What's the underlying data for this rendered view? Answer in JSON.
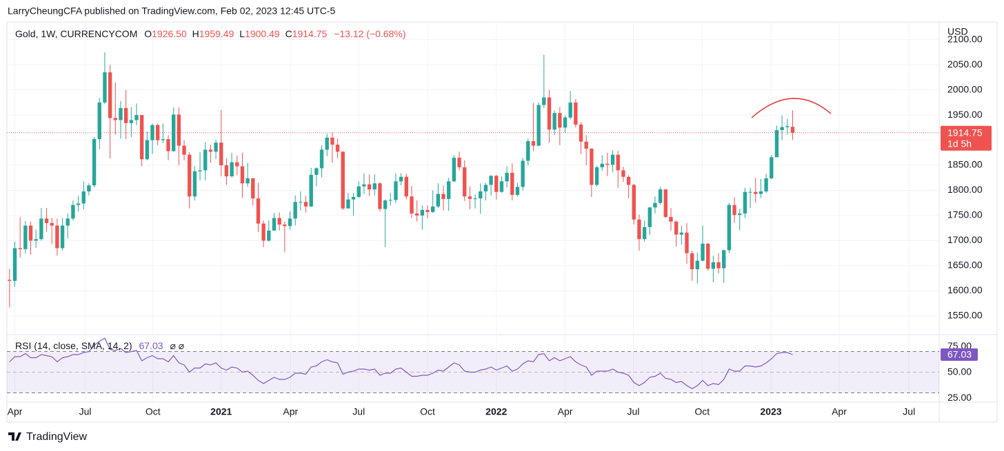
{
  "header": {
    "publisher": "LarryCheungCFA published on TradingView.com, Feb 02, 2023 12:45 UTC-5",
    "symbol": "Gold, 1W, CURRENCYCOM",
    "o_key": "O",
    "o": "1926.50",
    "h_key": "H",
    "h": "1959.49",
    "l_key": "L",
    "l": "1900.49",
    "c_key": "C",
    "c": "1914.75",
    "change": "−13.12 (−0.68%)",
    "currency": "USD",
    "countdown": "1d 5h",
    "rsi_flags": "⌀  ⌀"
  },
  "footer": {
    "brand": "TradingView"
  },
  "chart_data": [
    {
      "type": "candlestick",
      "up_color": "#26a69a",
      "down_color": "#ef5350",
      "last_line_color": "#ef5350",
      "xlim": [
        -0.5,
        175.7
      ],
      "xticks": [
        {
          "value": 1,
          "label": "Apr"
        },
        {
          "value": 14.3,
          "label": "Jul"
        },
        {
          "value": 27.1,
          "label": "Oct"
        },
        {
          "value": 40,
          "label": "2021"
        },
        {
          "value": 53.1,
          "label": "Apr"
        },
        {
          "value": 66,
          "label": "Jul"
        },
        {
          "value": 79,
          "label": "Oct"
        },
        {
          "value": 92,
          "label": "2022"
        },
        {
          "value": 105,
          "label": "Apr"
        },
        {
          "value": 117.9,
          "label": "Jul"
        },
        {
          "value": 130.9,
          "label": "Oct"
        },
        {
          "value": 143.9,
          "label": "2023"
        },
        {
          "value": 156.8,
          "label": "Apr"
        },
        {
          "value": 170,
          "label": "Jul"
        }
      ],
      "ylim": [
        1517,
        2131
      ],
      "yticks": [
        {
          "value": 1550,
          "label": "1550.00"
        },
        {
          "value": 1600,
          "label": "1600.00"
        },
        {
          "value": 1650,
          "label": "1650.00"
        },
        {
          "value": 1700,
          "label": "1700.00"
        },
        {
          "value": 1750,
          "label": "1750.00"
        },
        {
          "value": 1800,
          "label": "1800.00"
        },
        {
          "value": 1850,
          "label": "1850.00"
        },
        {
          "value": 1900,
          "label": "1900.00"
        },
        {
          "value": 1950,
          "label": "1950.00"
        },
        {
          "value": 2000,
          "label": "2000.00"
        },
        {
          "value": 2050,
          "label": "2050.00"
        },
        {
          "value": 2100,
          "label": "2100.00"
        }
      ],
      "grid": true,
      "ohlc": [
        [
          1622,
          1644,
          1567,
          1620
        ],
        [
          1620,
          1698,
          1608,
          1685
        ],
        [
          1685,
          1747,
          1666,
          1683
        ],
        [
          1683,
          1739,
          1674,
          1730
        ],
        [
          1730,
          1738,
          1672,
          1700
        ],
        [
          1700,
          1722,
          1686,
          1703
        ],
        [
          1703,
          1765,
          1700,
          1744
        ],
        [
          1744,
          1765,
          1718,
          1735
        ],
        [
          1735,
          1745,
          1693,
          1730
        ],
        [
          1730,
          1744,
          1670,
          1685
        ],
        [
          1685,
          1745,
          1680,
          1730
        ],
        [
          1730,
          1754,
          1704,
          1744
        ],
        [
          1744,
          1780,
          1740,
          1771
        ],
        [
          1771,
          1789,
          1758,
          1774
        ],
        [
          1774,
          1818,
          1762,
          1798
        ],
        [
          1798,
          1814,
          1790,
          1810
        ],
        [
          1810,
          1906,
          1806,
          1902
        ],
        [
          1902,
          1984,
          1882,
          1975
        ],
        [
          1975,
          2075,
          1972,
          2035
        ],
        [
          2035,
          2050,
          1863,
          1944
        ],
        [
          1944,
          2015,
          1911,
          1940
        ],
        [
          1940,
          1978,
          1903,
          1964
        ],
        [
          1964,
          2000,
          1902,
          1934
        ],
        [
          1934,
          1966,
          1906,
          1940
        ],
        [
          1940,
          1973,
          1930,
          1950
        ],
        [
          1950,
          1950,
          1848,
          1862
        ],
        [
          1862,
          1917,
          1860,
          1900
        ],
        [
          1900,
          1933,
          1873,
          1930
        ],
        [
          1930,
          1933,
          1890,
          1900
        ],
        [
          1900,
          1933,
          1894,
          1902
        ],
        [
          1902,
          1910,
          1860,
          1878
        ],
        [
          1878,
          1965,
          1877,
          1951
        ],
        [
          1951,
          1965,
          1850,
          1889
        ],
        [
          1889,
          1900,
          1860,
          1871
        ],
        [
          1871,
          1876,
          1764,
          1788
        ],
        [
          1788,
          1848,
          1780,
          1838
        ],
        [
          1838,
          1876,
          1820,
          1840
        ],
        [
          1840,
          1896,
          1820,
          1881
        ],
        [
          1881,
          1891,
          1855,
          1877
        ],
        [
          1877,
          1900,
          1862,
          1895
        ],
        [
          1895,
          1960,
          1828,
          1850
        ],
        [
          1850,
          1864,
          1811,
          1828
        ],
        [
          1828,
          1875,
          1826,
          1856
        ],
        [
          1856,
          1870,
          1830,
          1848
        ],
        [
          1848,
          1875,
          1785,
          1814
        ],
        [
          1814,
          1855,
          1807,
          1824
        ],
        [
          1824,
          1825,
          1770,
          1784
        ],
        [
          1784,
          1815,
          1717,
          1734
        ],
        [
          1734,
          1740,
          1687,
          1700
        ],
        [
          1700,
          1740,
          1698,
          1720
        ],
        [
          1720,
          1755,
          1720,
          1745
        ],
        [
          1745,
          1756,
          1720,
          1732
        ],
        [
          1732,
          1738,
          1677,
          1729
        ],
        [
          1729,
          1758,
          1722,
          1744
        ],
        [
          1744,
          1790,
          1730,
          1777
        ],
        [
          1777,
          1798,
          1760,
          1777
        ],
        [
          1777,
          1789,
          1756,
          1768
        ],
        [
          1768,
          1845,
          1767,
          1831
        ],
        [
          1831,
          1846,
          1808,
          1844
        ],
        [
          1844,
          1890,
          1826,
          1881
        ],
        [
          1881,
          1913,
          1868,
          1905
        ],
        [
          1905,
          1916,
          1855,
          1891
        ],
        [
          1891,
          1903,
          1864,
          1877
        ],
        [
          1877,
          1878,
          1761,
          1764
        ],
        [
          1764,
          1795,
          1764,
          1782
        ],
        [
          1782,
          1795,
          1750,
          1787
        ],
        [
          1787,
          1818,
          1785,
          1808
        ],
        [
          1808,
          1834,
          1793,
          1812
        ],
        [
          1812,
          1832,
          1789,
          1802
        ],
        [
          1802,
          1832,
          1790,
          1814
        ],
        [
          1814,
          1816,
          1758,
          1763
        ],
        [
          1763,
          1782,
          1687,
          1780
        ],
        [
          1780,
          1795,
          1770,
          1781
        ],
        [
          1781,
          1834,
          1775,
          1818
        ],
        [
          1818,
          1834,
          1810,
          1827
        ],
        [
          1827,
          1833,
          1782,
          1788
        ],
        [
          1788,
          1809,
          1745,
          1754
        ],
        [
          1754,
          1780,
          1738,
          1750
        ],
        [
          1750,
          1770,
          1722,
          1761
        ],
        [
          1761,
          1770,
          1745,
          1757
        ],
        [
          1757,
          1800,
          1755,
          1768
        ],
        [
          1768,
          1814,
          1765,
          1793
        ],
        [
          1793,
          1810,
          1760,
          1783
        ],
        [
          1783,
          1825,
          1759,
          1818
        ],
        [
          1818,
          1870,
          1817,
          1865
        ],
        [
          1865,
          1877,
          1840,
          1846
        ],
        [
          1846,
          1860,
          1779,
          1788
        ],
        [
          1788,
          1808,
          1762,
          1783
        ],
        [
          1783,
          1792,
          1764,
          1784
        ],
        [
          1784,
          1814,
          1753,
          1798
        ],
        [
          1798,
          1815,
          1780,
          1811
        ],
        [
          1811,
          1830,
          1790,
          1829
        ],
        [
          1829,
          1831,
          1782,
          1797
        ],
        [
          1797,
          1828,
          1795,
          1818
        ],
        [
          1818,
          1848,
          1806,
          1835
        ],
        [
          1835,
          1854,
          1780,
          1791
        ],
        [
          1791,
          1815,
          1788,
          1807
        ],
        [
          1807,
          1865,
          1800,
          1859
        ],
        [
          1859,
          1903,
          1850,
          1898
        ],
        [
          1898,
          1974,
          1878,
          1889
        ],
        [
          1889,
          1975,
          1888,
          1970
        ],
        [
          1970,
          2070,
          1964,
          1985
        ],
        [
          1985,
          2000,
          1895,
          1921
        ],
        [
          1921,
          1959,
          1910,
          1954
        ],
        [
          1954,
          1966,
          1890,
          1925
        ],
        [
          1925,
          1949,
          1915,
          1945
        ],
        [
          1945,
          1998,
          1941,
          1975
        ],
        [
          1975,
          1982,
          1925,
          1931
        ],
        [
          1931,
          1936,
          1872,
          1897
        ],
        [
          1897,
          1910,
          1850,
          1883
        ],
        [
          1883,
          1884,
          1787,
          1811
        ],
        [
          1811,
          1849,
          1808,
          1846
        ],
        [
          1846,
          1870,
          1839,
          1853
        ],
        [
          1853,
          1875,
          1828,
          1851
        ],
        [
          1851,
          1880,
          1836,
          1871
        ],
        [
          1871,
          1879,
          1805,
          1840
        ],
        [
          1840,
          1847,
          1817,
          1827
        ],
        [
          1827,
          1830,
          1784,
          1811
        ],
        [
          1811,
          1813,
          1732,
          1742
        ],
        [
          1742,
          1752,
          1680,
          1703
        ],
        [
          1703,
          1740,
          1698,
          1727
        ],
        [
          1727,
          1767,
          1711,
          1766
        ],
        [
          1766,
          1788,
          1754,
          1775
        ],
        [
          1775,
          1807,
          1772,
          1802
        ],
        [
          1802,
          1802,
          1745,
          1747
        ],
        [
          1747,
          1765,
          1720,
          1738
        ],
        [
          1738,
          1740,
          1688,
          1712
        ],
        [
          1712,
          1730,
          1692,
          1716
        ],
        [
          1716,
          1735,
          1654,
          1675
        ],
        [
          1675,
          1680,
          1620,
          1643
        ],
        [
          1643,
          1676,
          1615,
          1660
        ],
        [
          1660,
          1730,
          1659,
          1694
        ],
        [
          1694,
          1695,
          1640,
          1644
        ],
        [
          1644,
          1670,
          1617,
          1657
        ],
        [
          1657,
          1675,
          1635,
          1645
        ],
        [
          1645,
          1682,
          1616,
          1681
        ],
        [
          1681,
          1775,
          1675,
          1771
        ],
        [
          1771,
          1786,
          1735,
          1751
        ],
        [
          1751,
          1763,
          1721,
          1754
        ],
        [
          1754,
          1805,
          1745,
          1797
        ],
        [
          1797,
          1805,
          1765,
          1797
        ],
        [
          1797,
          1825,
          1775,
          1793
        ],
        [
          1793,
          1823,
          1785,
          1798
        ],
        [
          1798,
          1833,
          1795,
          1824
        ],
        [
          1824,
          1870,
          1822,
          1866
        ],
        [
          1866,
          1929,
          1866,
          1920
        ],
        [
          1920,
          1949,
          1900,
          1926
        ],
        [
          1926,
          1942,
          1911,
          1928
        ],
        [
          1926.5,
          1959.49,
          1900.49,
          1914.75
        ]
      ]
    },
    {
      "type": "line",
      "title": "RSI (14, close, SMA, 14, 2)",
      "xlim": [
        -0.5,
        175.7
      ],
      "ylim": [
        21.7,
        83.7
      ],
      "yticks": [
        {
          "value": 25,
          "label": "25.00"
        },
        {
          "value": 50,
          "label": "50.00"
        },
        {
          "value": 75,
          "label": "75.00"
        }
      ],
      "bands": [
        30,
        70
      ],
      "midline": 50,
      "band_color": "#7e57c2",
      "series": [
        {
          "color": "#7e57c2",
          "values": [
            60,
            65,
            65,
            68,
            64,
            64,
            67,
            66,
            65,
            60,
            64,
            65,
            67,
            67,
            69,
            70,
            76,
            80,
            83,
            72,
            71,
            73,
            69,
            70,
            71,
            61,
            64,
            66,
            63,
            63,
            60,
            66,
            59,
            57,
            50,
            54,
            54,
            58,
            57,
            59,
            54,
            52,
            55,
            54,
            50,
            51,
            47,
            42,
            39,
            42,
            45,
            43,
            43,
            45,
            49,
            49,
            48,
            55,
            56,
            60,
            62,
            60,
            59,
            48,
            50,
            51,
            53,
            53,
            52,
            53,
            47,
            49,
            49,
            53,
            54,
            50,
            46,
            46,
            47,
            47,
            49,
            52,
            51,
            55,
            59,
            57,
            51,
            50,
            50,
            52,
            53,
            55,
            52,
            54,
            56,
            51,
            53,
            58,
            61,
            60,
            67,
            68,
            61,
            64,
            61,
            63,
            65,
            60,
            57,
            55,
            47,
            51,
            51,
            51,
            53,
            50,
            49,
            47,
            40,
            37,
            40,
            45,
            46,
            49,
            44,
            43,
            40,
            41,
            37,
            34,
            37,
            42,
            37,
            39,
            38,
            43,
            53,
            51,
            51,
            56,
            56,
            55,
            56,
            59,
            63,
            68,
            69,
            69,
            67.03
          ]
        }
      ]
    }
  ]
}
